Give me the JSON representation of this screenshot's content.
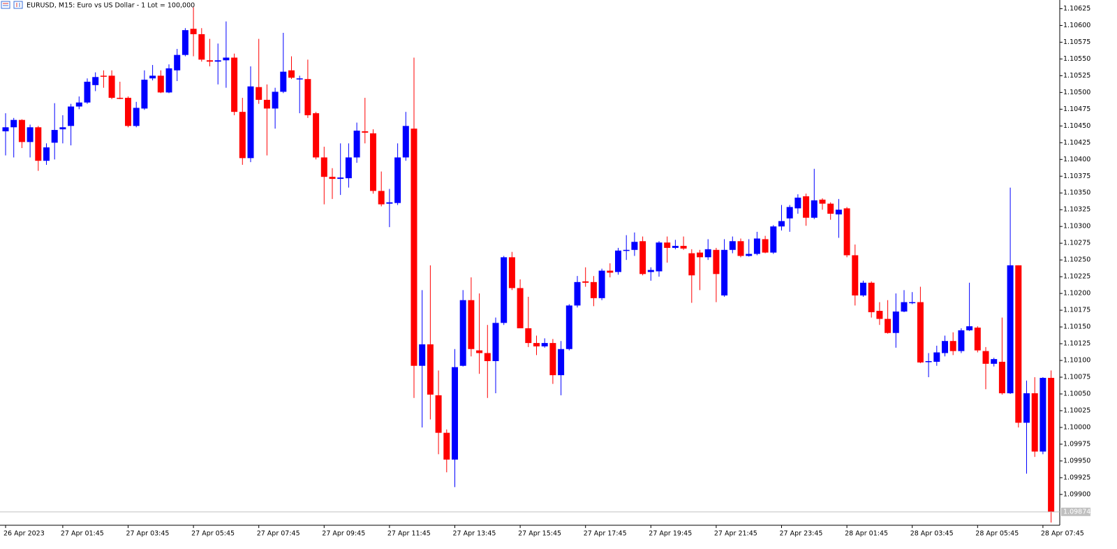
{
  "chart_data": {
    "type": "candlestick",
    "title": "EURUSD, M15:  Euro vs US Dollar - 1 Lot = 100,000",
    "categories": [
      "26 Apr 2023",
      null,
      null,
      null,
      null,
      null,
      null,
      "27 Apr 01:45",
      null,
      null,
      null,
      null,
      null,
      null,
      null,
      "27 Apr 03:45",
      null,
      null,
      null,
      null,
      null,
      null,
      null,
      "27 Apr 05:45",
      null,
      null,
      null,
      null,
      null,
      null,
      null,
      "27 Apr 07:45",
      null,
      null,
      null,
      null,
      null,
      null,
      null,
      "27 Apr 09:45",
      null,
      null,
      null,
      null,
      null,
      null,
      null,
      "27 Apr 11:45",
      null,
      null,
      null,
      null,
      null,
      null,
      null,
      "27 Apr 13:45",
      null,
      null,
      null,
      null,
      null,
      null,
      null,
      "27 Apr 15:45",
      null,
      null,
      null,
      null,
      null,
      null,
      null,
      "27 Apr 17:45",
      null,
      null,
      null,
      null,
      null,
      null,
      null,
      "27 Apr 19:45",
      null,
      null,
      null,
      null,
      null,
      null,
      null,
      "27 Apr 21:45",
      null,
      null,
      null,
      null,
      null,
      null,
      null,
      "27 Apr 23:45",
      null,
      null,
      null,
      null,
      null,
      null,
      null,
      "28 Apr 01:45",
      null,
      null,
      null,
      null,
      null,
      null,
      null,
      "28 Apr 03:45",
      null,
      null,
      null,
      null,
      null,
      null,
      null,
      "28 Apr 05:45",
      null,
      null,
      null,
      null,
      null,
      null,
      null,
      "28 Apr 07:45",
      null
    ],
    "open": [
      1.10442,
      1.10448,
      1.10459,
      1.10426,
      1.10448,
      1.10398,
      1.10425,
      1.10445,
      1.1045,
      1.10479,
      1.10485,
      1.10511,
      1.10525,
      1.10525,
      1.10492,
      1.10492,
      1.1045,
      1.10476,
      1.10521,
      1.10525,
      1.105,
      1.10533,
      1.10556,
      1.10595,
      1.10587,
      1.10548,
      1.10546,
      1.10548,
      1.10552,
      1.10471,
      1.10402,
      1.10508,
      1.10489,
      1.10476,
      1.10501,
      1.10533,
      1.1052,
      1.1052,
      1.10469,
      1.10403,
      1.10374,
      1.10371,
      1.10372,
      1.10403,
      1.10442,
      1.10439,
      1.10353,
      1.10334,
      1.10335,
      1.10403,
      1.10446,
      1.10092,
      1.10124,
      1.10048,
      1.09992,
      1.09952,
      1.10092,
      1.1019,
      1.10115,
      1.10111,
      1.10099,
      1.10156,
      1.10254,
      1.10208,
      1.10148,
      1.10126,
      1.10121,
      1.10126,
      1.10078,
      1.10117,
      1.10182,
      1.10218,
      1.10217,
      1.10193,
      1.10234,
      1.10232,
      1.10264,
      1.10265,
      1.10278,
      1.10232,
      1.10233,
      1.10276,
      1.10268,
      1.10271,
      1.1026,
      1.10261,
      1.10254,
      1.10265,
      1.10197,
      1.10265,
      1.10278,
      1.10256,
      1.10259,
      1.10281,
      1.10261,
      1.103,
      1.10312,
      1.10327,
      1.10345,
      1.10313,
      1.1034,
      1.10334,
      1.10318,
      1.10327,
      1.10257,
      1.10197,
      1.10216,
      1.10174,
      1.10162,
      1.10141,
      1.10173,
      1.10186,
      1.10187,
      1.10098,
      1.10098,
      1.10111,
      1.10129,
      1.10114,
      1.10145,
      1.10149,
      1.10114,
      1.10095,
      1.10098,
      1.10051,
      1.10242,
      1.10007,
      1.10051,
      1.09964,
      1.10074
    ],
    "high": [
      1.10469,
      1.10462,
      1.1046,
      1.10452,
      1.1045,
      1.10424,
      1.10484,
      1.10466,
      1.10483,
      1.10494,
      1.10521,
      1.1053,
      1.10533,
      1.10533,
      1.10516,
      1.10494,
      1.10486,
      1.10533,
      1.10541,
      1.10533,
      1.10542,
      1.10565,
      1.10596,
      1.10627,
      1.10596,
      1.1058,
      1.10573,
      1.10606,
      1.10558,
      1.10492,
      1.10539,
      1.1058,
      1.10512,
      1.10507,
      1.10589,
      1.10554,
      1.10525,
      1.10549,
      1.10471,
      1.10419,
      1.10387,
      1.10424,
      1.10424,
      1.10455,
      1.10492,
      1.10445,
      1.10382,
      1.10356,
      1.10424,
      1.10471,
      1.10552,
      1.10205,
      1.10242,
      1.10085,
      1.09997,
      1.10117,
      1.10205,
      1.10224,
      1.102,
      1.10153,
      1.10164,
      1.10256,
      1.10262,
      1.10221,
      1.10195,
      1.10137,
      1.10133,
      1.10132,
      1.10129,
      1.10184,
      1.10226,
      1.10239,
      1.10226,
      1.10237,
      1.10245,
      1.10268,
      1.10287,
      1.10291,
      1.10285,
      1.10239,
      1.10278,
      1.10285,
      1.1028,
      1.10285,
      1.10266,
      1.10265,
      1.10281,
      1.10268,
      1.10281,
      1.10285,
      1.10282,
      1.10281,
      1.10292,
      1.10286,
      1.10302,
      1.10332,
      1.10332,
      1.10348,
      1.10349,
      1.10386,
      1.10342,
      1.10336,
      1.10341,
      1.10329,
      1.10273,
      1.10219,
      1.10218,
      1.10187,
      1.1019,
      1.102,
      1.10205,
      1.10202,
      1.1021,
      1.10111,
      1.10122,
      1.10137,
      1.10142,
      1.10148,
      1.10216,
      1.10151,
      1.1012,
      1.10104,
      1.10164,
      1.10358,
      1.10242,
      1.1007,
      1.10075,
      1.10075,
      1.10085
    ],
    "low": [
      1.10406,
      1.10403,
      1.10417,
      1.10403,
      1.10383,
      1.10392,
      1.104,
      1.10424,
      1.10421,
      1.10475,
      1.10483,
      1.10502,
      1.10507,
      1.1049,
      1.1049,
      1.10448,
      1.10448,
      1.10474,
      1.10518,
      1.10499,
      1.10499,
      1.10517,
      1.10554,
      1.10554,
      1.10546,
      1.10539,
      1.10512,
      1.10507,
      1.10466,
      1.10392,
      1.10396,
      1.10483,
      1.10406,
      1.10446,
      1.10499,
      1.1052,
      1.10469,
      1.10462,
      1.104,
      1.10333,
      1.10341,
      1.10347,
      1.10358,
      1.10395,
      1.10424,
      1.10349,
      1.1033,
      1.10299,
      1.10332,
      1.10398,
      1.10044,
      1.1,
      1.10012,
      1.0996,
      1.09933,
      1.09911,
      1.10091,
      1.10106,
      1.1008,
      1.10044,
      1.10051,
      1.10153,
      1.10205,
      1.10148,
      1.1012,
      1.10108,
      1.10119,
      1.10065,
      1.10048,
      1.10115,
      1.10179,
      1.1021,
      1.10181,
      1.1019,
      1.10224,
      1.10228,
      1.1025,
      1.10256,
      1.10227,
      1.10219,
      1.10225,
      1.10246,
      1.10266,
      1.10265,
      1.10186,
      1.10205,
      1.1025,
      1.10187,
      1.10195,
      1.1026,
      1.10254,
      1.10255,
      1.10257,
      1.1026,
      1.10259,
      1.10294,
      1.10292,
      1.10319,
      1.10301,
      1.10311,
      1.10325,
      1.1031,
      1.10283,
      1.10254,
      1.10182,
      1.10195,
      1.10164,
      1.10153,
      1.1014,
      1.10119,
      1.10172,
      1.10184,
      1.10096,
      1.10075,
      1.10092,
      1.10106,
      1.10108,
      1.10111,
      1.10144,
      1.10112,
      1.10057,
      1.10091,
      1.10049,
      1.1005,
      1.1,
      1.09931,
      1.09956,
      1.0996,
      1.09858
    ],
    "close": [
      1.10448,
      1.10459,
      1.10426,
      1.10448,
      1.10398,
      1.10418,
      1.10444,
      1.10448,
      1.10479,
      1.10485,
      1.10516,
      1.10523,
      1.10524,
      1.10492,
      1.10491,
      1.1045,
      1.10477,
      1.10519,
      1.10525,
      1.105,
      1.10536,
      1.10556,
      1.10593,
      1.10587,
      1.10549,
      1.10546,
      1.10548,
      1.10552,
      1.10471,
      1.10402,
      1.10509,
      1.10489,
      1.10476,
      1.10501,
      1.10531,
      1.10522,
      1.10521,
      1.10466,
      1.10403,
      1.10374,
      1.10371,
      1.10373,
      1.10403,
      1.10443,
      1.1044,
      1.10353,
      1.10333,
      1.10336,
      1.10403,
      1.1045,
      1.10092,
      1.10124,
      1.10049,
      1.09992,
      1.09952,
      1.1009,
      1.1019,
      1.10117,
      1.10111,
      1.10099,
      1.10156,
      1.10254,
      1.10208,
      1.10148,
      1.10126,
      1.10121,
      1.10126,
      1.10078,
      1.10117,
      1.10182,
      1.10217,
      1.10216,
      1.10193,
      1.10234,
      1.10231,
      1.10264,
      1.10265,
      1.10277,
      1.10229,
      1.10235,
      1.10276,
      1.10268,
      1.10271,
      1.10267,
      1.10227,
      1.10254,
      1.10266,
      1.10229,
      1.10265,
      1.10278,
      1.10256,
      1.10259,
      1.10282,
      1.10261,
      1.103,
      1.10308,
      1.10329,
      1.10343,
      1.10313,
      1.10339,
      1.10334,
      1.10319,
      1.10325,
      1.10257,
      1.10197,
      1.10216,
      1.10172,
      1.10162,
      1.10141,
      1.10173,
      1.10187,
      1.10187,
      1.10097,
      1.10099,
      1.10112,
      1.10129,
      1.10114,
      1.10145,
      1.10151,
      1.10115,
      1.10095,
      1.10102,
      1.10051,
      1.10242,
      1.10007,
      1.10051,
      1.09964,
      1.10074,
      1.09874
    ],
    "up_color": "#0000ff",
    "down_color": "#ff0000",
    "ylim": [
      1.09854,
      1.10638
    ],
    "yticks": [
      1.10625,
      {
        "value": 1.106,
        "label": "1.10600"
      },
      1.10575,
      {
        "value": 1.1055,
        "label": "1.10550"
      },
      1.10525,
      {
        "value": 1.105,
        "label": "1.10500"
      },
      1.10475,
      {
        "value": 1.1045,
        "label": "1.10450"
      },
      1.10425,
      {
        "value": 1.104,
        "label": "1.10400"
      },
      1.10375,
      {
        "value": 1.1035,
        "label": "1.10350"
      },
      1.10325,
      {
        "value": 1.103,
        "label": "1.10300"
      },
      1.10275,
      {
        "value": 1.1025,
        "label": "1.10250"
      },
      1.10225,
      {
        "value": 1.102,
        "label": "1.10200"
      },
      1.10175,
      {
        "value": 1.1015,
        "label": "1.10150"
      },
      1.10125,
      {
        "value": 1.101,
        "label": "1.10100"
      },
      1.10075,
      {
        "value": 1.1005,
        "label": "1.10050"
      },
      1.10025,
      {
        "value": 1.1,
        "label": "1.10000"
      },
      1.09975,
      {
        "value": 1.0995,
        "label": "1.09950"
      },
      1.09925,
      {
        "value": 1.099,
        "label": "1.09900"
      }
    ],
    "last_price": 1.09874
  }
}
